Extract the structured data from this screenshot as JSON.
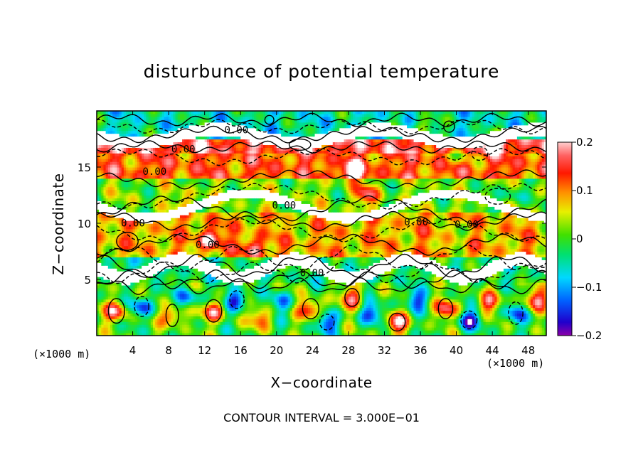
{
  "chart_data": {
    "type": "heatmap",
    "title": "disturbunce of potential temperature",
    "xlabel": "X−coordinate",
    "ylabel": "Z−coordinate",
    "x_unit_left": "(×1000 m)",
    "x_unit_right": "(×1000 m)",
    "x_ticks": [
      "4",
      "8",
      "12",
      "16",
      "20",
      "24",
      "28",
      "32",
      "36",
      "40",
      "44",
      "48"
    ],
    "x_tick_values": [
      4,
      8,
      12,
      16,
      20,
      24,
      28,
      32,
      36,
      40,
      44,
      48
    ],
    "xlim": [
      0,
      50
    ],
    "y_ticks": [
      "5",
      "10",
      "15"
    ],
    "y_tick_values": [
      5,
      10,
      15
    ],
    "ylim": [
      0,
      20
    ],
    "colorbar_ticks": [
      "0.2",
      "0.1",
      "0",
      "−0.1",
      "−0.2"
    ],
    "colorbar_values": [
      0.2,
      0.1,
      0,
      -0.1,
      -0.2
    ],
    "colorbar_range": [
      -0.2,
      0.2
    ],
    "colorbar_colors": [
      "#8b00a8",
      "#1f00cc",
      "#0060ff",
      "#00d8ff",
      "#00e070",
      "#40e000",
      "#e8f000",
      "#ff9000",
      "#ff1800",
      "#ff6060",
      "#ffd0d0"
    ],
    "contour_labels": [
      "0.00",
      "0.00",
      "0.00",
      "0.00",
      "0.00",
      "0.00",
      "0.00",
      "0.00",
      "0.00"
    ],
    "contour_interval_text": "CONTOUR INTERVAL = 3.000E−01",
    "bands": [
      {
        "z0": 17.6,
        "z1": 19.9,
        "v": -0.05
      },
      {
        "z0": 16.3,
        "z1": 17.6,
        "v": 0.16
      },
      {
        "z0": 14.1,
        "z1": 16.3,
        "v": 0.12
      },
      {
        "z0": 11.0,
        "z1": 14.1,
        "v": 0.02
      },
      {
        "z0": 7.0,
        "z1": 11.0,
        "v": 0.08
      },
      {
        "z0": 4.8,
        "z1": 7.0,
        "v": -0.02
      },
      {
        "z0": 0.0,
        "z1": 4.8,
        "v": 0.0
      }
    ],
    "blobs": [
      {
        "x": 2.2,
        "z": 2.2,
        "v": 0.18
      },
      {
        "x": 5.0,
        "z": 2.6,
        "v": -0.15
      },
      {
        "x": 8.4,
        "z": 1.8,
        "v": 0.14
      },
      {
        "x": 10.2,
        "z": 3.4,
        "v": -0.12
      },
      {
        "x": 13.0,
        "z": 2.2,
        "v": 0.17
      },
      {
        "x": 15.6,
        "z": 3.2,
        "v": -0.16
      },
      {
        "x": 18.2,
        "z": 1.6,
        "v": 0.12
      },
      {
        "x": 20.6,
        "z": 3.0,
        "v": -0.1
      },
      {
        "x": 23.8,
        "z": 2.4,
        "v": 0.16
      },
      {
        "x": 25.6,
        "z": 1.2,
        "v": -0.14
      },
      {
        "x": 28.4,
        "z": 3.4,
        "v": 0.15
      },
      {
        "x": 30.6,
        "z": 2.0,
        "v": -0.13
      },
      {
        "x": 33.4,
        "z": 1.2,
        "v": 0.18
      },
      {
        "x": 35.6,
        "z": 3.2,
        "v": -0.12
      },
      {
        "x": 38.8,
        "z": 2.4,
        "v": 0.16
      },
      {
        "x": 41.4,
        "z": 1.4,
        "v": -0.15
      },
      {
        "x": 43.6,
        "z": 3.0,
        "v": 0.14
      },
      {
        "x": 46.6,
        "z": 2.0,
        "v": -0.12
      },
      {
        "x": 48.8,
        "z": 3.2,
        "v": 0.17
      },
      {
        "x": 12.6,
        "z": 8.6,
        "v": 0.14
      },
      {
        "x": 17.4,
        "z": 7.8,
        "v": 0.12
      },
      {
        "x": 30.0,
        "z": 12.6,
        "v": 0.14
      },
      {
        "x": 28.4,
        "z": 14.6,
        "v": 0.13
      },
      {
        "x": 4.4,
        "z": 6.4,
        "v": -0.06
      },
      {
        "x": 40.6,
        "z": 9.2,
        "v": -0.05
      },
      {
        "x": 40.2,
        "z": 16.2,
        "v": -0.1
      },
      {
        "x": 43.8,
        "z": 17.2,
        "v": 0.12
      },
      {
        "x": 46.4,
        "z": 12.6,
        "v": -0.08
      },
      {
        "x": 36.6,
        "z": 18.6,
        "v": 0.1
      },
      {
        "x": 10.0,
        "z": 12.0,
        "v": 0.06
      },
      {
        "x": 22.2,
        "z": 10.6,
        "v": -0.05
      }
    ]
  }
}
